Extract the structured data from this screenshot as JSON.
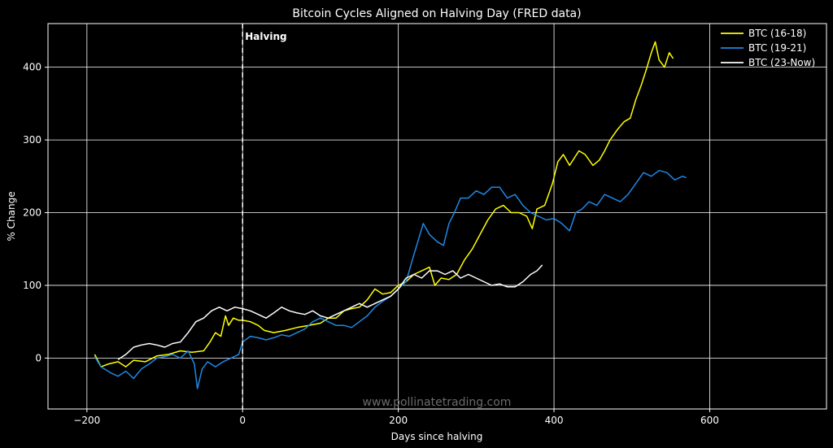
{
  "chart_data": {
    "type": "line",
    "title": "Bitcoin Cycles Aligned on Halving Day  (FRED data)",
    "xlabel": "Days since halving",
    "ylabel": "% Change",
    "xlim": [
      -250,
      750
    ],
    "ylim": [
      -70,
      460
    ],
    "xticks": [
      -200,
      0,
      200,
      400,
      600
    ],
    "yticks": [
      0,
      100,
      200,
      300,
      400
    ],
    "xtick_labels": [
      "−200",
      "0",
      "200",
      "400",
      "600"
    ],
    "ytick_labels": [
      "0",
      "100",
      "200",
      "300",
      "400"
    ],
    "grid": true,
    "legend_position": "top-right",
    "annotation": {
      "text": "Halving",
      "x": 0
    },
    "watermark": "www.pollinatetrading.com",
    "series": [
      {
        "name": "BTC (16-18)",
        "color": "#ffff00",
        "points": [
          [
            -190,
            5
          ],
          [
            -182,
            -12
          ],
          [
            -172,
            -8
          ],
          [
            -160,
            -5
          ],
          [
            -150,
            -12
          ],
          [
            -140,
            -3
          ],
          [
            -125,
            -5
          ],
          [
            -110,
            3
          ],
          [
            -95,
            5
          ],
          [
            -80,
            10
          ],
          [
            -65,
            8
          ],
          [
            -50,
            10
          ],
          [
            -42,
            22
          ],
          [
            -35,
            35
          ],
          [
            -28,
            30
          ],
          [
            -22,
            58
          ],
          [
            -18,
            45
          ],
          [
            -12,
            55
          ],
          [
            -5,
            52
          ],
          [
            0,
            52
          ],
          [
            10,
            50
          ],
          [
            20,
            45
          ],
          [
            28,
            38
          ],
          [
            40,
            35
          ],
          [
            55,
            38
          ],
          [
            70,
            42
          ],
          [
            85,
            45
          ],
          [
            100,
            48
          ],
          [
            110,
            55
          ],
          [
            120,
            55
          ],
          [
            130,
            65
          ],
          [
            140,
            68
          ],
          [
            150,
            70
          ],
          [
            160,
            80
          ],
          [
            170,
            95
          ],
          [
            180,
            88
          ],
          [
            190,
            90
          ],
          [
            200,
            100
          ],
          [
            210,
            105
          ],
          [
            220,
            115
          ],
          [
            230,
            120
          ],
          [
            240,
            125
          ],
          [
            247,
            100
          ],
          [
            255,
            110
          ],
          [
            265,
            108
          ],
          [
            275,
            115
          ],
          [
            285,
            135
          ],
          [
            295,
            150
          ],
          [
            305,
            170
          ],
          [
            315,
            190
          ],
          [
            325,
            205
          ],
          [
            335,
            210
          ],
          [
            345,
            200
          ],
          [
            355,
            200
          ],
          [
            365,
            195
          ],
          [
            372,
            178
          ],
          [
            378,
            205
          ],
          [
            388,
            210
          ],
          [
            398,
            240
          ],
          [
            405,
            270
          ],
          [
            412,
            280
          ],
          [
            420,
            265
          ],
          [
            432,
            285
          ],
          [
            440,
            280
          ],
          [
            450,
            265
          ],
          [
            458,
            272
          ],
          [
            465,
            285
          ],
          [
            472,
            300
          ],
          [
            482,
            315
          ],
          [
            490,
            325
          ],
          [
            498,
            330
          ],
          [
            505,
            355
          ],
          [
            512,
            375
          ],
          [
            518,
            395
          ],
          [
            525,
            420
          ],
          [
            530,
            435
          ],
          [
            535,
            410
          ],
          [
            542,
            400
          ],
          [
            548,
            420
          ],
          [
            553,
            412
          ]
        ]
      },
      {
        "name": "BTC (19-21)",
        "color": "#1e88e5",
        "points": [
          [
            -190,
            2
          ],
          [
            -182,
            -12
          ],
          [
            -170,
            -20
          ],
          [
            -160,
            -25
          ],
          [
            -150,
            -18
          ],
          [
            -140,
            -28
          ],
          [
            -130,
            -15
          ],
          [
            -120,
            -8
          ],
          [
            -110,
            0
          ],
          [
            -100,
            2
          ],
          [
            -90,
            5
          ],
          [
            -80,
            0
          ],
          [
            -70,
            10
          ],
          [
            -62,
            -8
          ],
          [
            -58,
            -42
          ],
          [
            -52,
            -15
          ],
          [
            -45,
            -5
          ],
          [
            -35,
            -12
          ],
          [
            -25,
            -5
          ],
          [
            -15,
            0
          ],
          [
            -5,
            5
          ],
          [
            0,
            22
          ],
          [
            10,
            30
          ],
          [
            20,
            28
          ],
          [
            30,
            25
          ],
          [
            40,
            28
          ],
          [
            50,
            32
          ],
          [
            60,
            30
          ],
          [
            70,
            35
          ],
          [
            80,
            40
          ],
          [
            90,
            50
          ],
          [
            100,
            55
          ],
          [
            110,
            50
          ],
          [
            120,
            45
          ],
          [
            130,
            45
          ],
          [
            140,
            42
          ],
          [
            150,
            50
          ],
          [
            160,
            58
          ],
          [
            170,
            70
          ],
          [
            180,
            78
          ],
          [
            190,
            85
          ],
          [
            200,
            95
          ],
          [
            210,
            105
          ],
          [
            218,
            135
          ],
          [
            225,
            160
          ],
          [
            232,
            185
          ],
          [
            240,
            170
          ],
          [
            250,
            160
          ],
          [
            258,
            155
          ],
          [
            265,
            185
          ],
          [
            272,
            200
          ],
          [
            280,
            220
          ],
          [
            290,
            220
          ],
          [
            300,
            230
          ],
          [
            310,
            225
          ],
          [
            320,
            235
          ],
          [
            330,
            235
          ],
          [
            340,
            220
          ],
          [
            350,
            225
          ],
          [
            360,
            210
          ],
          [
            370,
            200
          ],
          [
            380,
            195
          ],
          [
            390,
            190
          ],
          [
            400,
            192
          ],
          [
            410,
            185
          ],
          [
            420,
            175
          ],
          [
            428,
            200
          ],
          [
            436,
            205
          ],
          [
            445,
            215
          ],
          [
            455,
            210
          ],
          [
            465,
            225
          ],
          [
            475,
            220
          ],
          [
            485,
            215
          ],
          [
            495,
            225
          ],
          [
            505,
            240
          ],
          [
            515,
            255
          ],
          [
            525,
            250
          ],
          [
            535,
            258
          ],
          [
            545,
            255
          ],
          [
            555,
            245
          ],
          [
            565,
            250
          ],
          [
            570,
            248
          ]
        ]
      },
      {
        "name": "BTC (23-Now)",
        "color": "#ffffff",
        "points": [
          [
            -160,
            -2
          ],
          [
            -150,
            5
          ],
          [
            -140,
            15
          ],
          [
            -130,
            18
          ],
          [
            -120,
            20
          ],
          [
            -110,
            18
          ],
          [
            -100,
            15
          ],
          [
            -90,
            20
          ],
          [
            -80,
            22
          ],
          [
            -70,
            35
          ],
          [
            -60,
            50
          ],
          [
            -50,
            55
          ],
          [
            -40,
            65
          ],
          [
            -30,
            70
          ],
          [
            -20,
            65
          ],
          [
            -10,
            70
          ],
          [
            0,
            68
          ],
          [
            10,
            65
          ],
          [
            20,
            60
          ],
          [
            30,
            55
          ],
          [
            40,
            62
          ],
          [
            50,
            70
          ],
          [
            60,
            65
          ],
          [
            70,
            62
          ],
          [
            80,
            60
          ],
          [
            90,
            65
          ],
          [
            100,
            58
          ],
          [
            110,
            55
          ],
          [
            120,
            60
          ],
          [
            130,
            65
          ],
          [
            140,
            70
          ],
          [
            150,
            75
          ],
          [
            160,
            70
          ],
          [
            170,
            75
          ],
          [
            180,
            80
          ],
          [
            190,
            85
          ],
          [
            200,
            95
          ],
          [
            210,
            110
          ],
          [
            220,
            115
          ],
          [
            230,
            110
          ],
          [
            240,
            120
          ],
          [
            250,
            120
          ],
          [
            260,
            115
          ],
          [
            270,
            120
          ],
          [
            280,
            110
          ],
          [
            290,
            115
          ],
          [
            300,
            110
          ],
          [
            310,
            105
          ],
          [
            320,
            100
          ],
          [
            330,
            102
          ],
          [
            340,
            98
          ],
          [
            350,
            98
          ],
          [
            360,
            105
          ],
          [
            370,
            115
          ],
          [
            378,
            120
          ],
          [
            385,
            128
          ]
        ]
      }
    ]
  }
}
